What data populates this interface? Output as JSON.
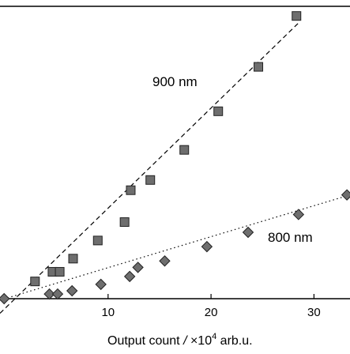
{
  "chart_data": {
    "type": "scatter",
    "title": "",
    "xlabel": {
      "prefix": "Output count ",
      "slash": "/",
      "mid": " ×10",
      "sup": "4",
      "suffix": " arb.u."
    },
    "ylabel": "",
    "xlim": [
      -0.5,
      33.5
    ],
    "ylim": [
      0,
      1
    ],
    "grid": false,
    "x_ticks": [
      10,
      20,
      30
    ],
    "x_tick_labels": [
      "10",
      "20",
      "30"
    ],
    "series": [
      {
        "name": "900 nm",
        "marker": "square",
        "color": "#6e6e6e",
        "fit_line": "dashed",
        "points": [
          [
            2.9,
            0.059
          ],
          [
            4.6,
            0.092
          ],
          [
            5.3,
            0.092
          ],
          [
            6.6,
            0.137
          ],
          [
            9.0,
            0.199
          ],
          [
            11.6,
            0.262
          ],
          [
            12.2,
            0.371
          ],
          [
            14.1,
            0.406
          ],
          [
            17.4,
            0.509
          ],
          [
            20.7,
            0.641
          ],
          [
            24.6,
            0.793
          ],
          [
            28.3,
            0.967
          ]
        ],
        "fit": [
          [
            -0.5,
            -0.05
          ],
          [
            28.5,
            0.943
          ]
        ]
      },
      {
        "name": "800 nm",
        "marker": "diamond",
        "color": "#6e6e6e",
        "fit_line": "dotted",
        "points": [
          [
            -0.1,
            0.0
          ],
          [
            4.3,
            0.016
          ],
          [
            5.1,
            0.016
          ],
          [
            6.5,
            0.027
          ],
          [
            9.3,
            0.049
          ],
          [
            12.1,
            0.076
          ],
          [
            12.9,
            0.107
          ],
          [
            15.5,
            0.129
          ],
          [
            19.6,
            0.178
          ],
          [
            23.6,
            0.227
          ],
          [
            28.5,
            0.288
          ],
          [
            33.2,
            0.355
          ]
        ],
        "fit": [
          [
            -0.5,
            -0.005
          ],
          [
            33.5,
            0.355
          ]
        ]
      }
    ]
  }
}
